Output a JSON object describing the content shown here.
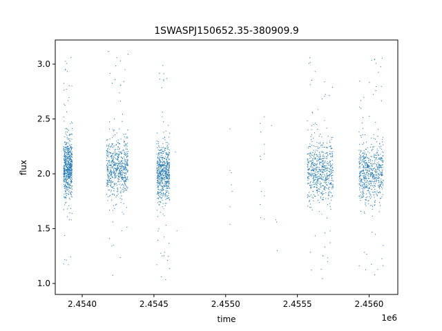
{
  "chart_data": {
    "type": "scatter",
    "title": "1SWASPJ150652.35-380909.9",
    "xlabel": "time",
    "ylabel": "flux",
    "x_offset_label": "1e6",
    "xlim": [
      2453812,
      2456200
    ],
    "ylim": [
      0.9,
      3.22
    ],
    "grid": false,
    "legend": "none",
    "x_ticks": [
      {
        "value": 2454000,
        "label": "2.4540"
      },
      {
        "value": 2454500,
        "label": "2.4545"
      },
      {
        "value": 2455000,
        "label": "2.4550"
      },
      {
        "value": 2455500,
        "label": "2.4555"
      },
      {
        "value": 2456000,
        "label": "2.4560"
      }
    ],
    "y_ticks": [
      {
        "value": 1.0,
        "label": "1.0"
      },
      {
        "value": 1.5,
        "label": "1.5"
      },
      {
        "value": 2.0,
        "label": "2.0"
      },
      {
        "value": 2.5,
        "label": "2.5"
      },
      {
        "value": 3.0,
        "label": "3.0"
      }
    ],
    "series": [
      {
        "color": "#1f77b4",
        "marker": "point",
        "observing_seasons": [
          {
            "x_range": [
              2453870,
              2453930
            ],
            "median_flux": 2.05,
            "flux_range": [
              1.0,
              3.09
            ]
          },
          {
            "x_range": [
              2454170,
              2454320
            ],
            "median_flux": 2.05,
            "flux_range": [
              1.03,
              3.12
            ]
          },
          {
            "x_range": [
              2454520,
              2454610
            ],
            "median_flux": 2.0,
            "flux_range": [
              1.0,
              3.05
            ]
          },
          {
            "x_range": [
              2455570,
              2455750
            ],
            "median_flux": 2.02,
            "flux_range": [
              1.02,
              3.06
            ]
          },
          {
            "x_range": [
              2455930,
              2456100
            ],
            "median_flux": 2.02,
            "flux_range": [
              1.02,
              3.06
            ]
          }
        ],
        "isolated_points": [
          [
            2454650,
            2.2
          ],
          [
            2454660,
            1.48
          ],
          [
            2455030,
            2.41
          ],
          [
            2455030,
            2.03
          ],
          [
            2455040,
            2.01
          ],
          [
            2455040,
            1.9
          ],
          [
            2455045,
            1.84
          ],
          [
            2455030,
            1.7
          ],
          [
            2455030,
            1.54
          ],
          [
            2455240,
            2.46
          ],
          [
            2455245,
            2.38
          ],
          [
            2455240,
            2.16
          ],
          [
            2455245,
            2.13
          ],
          [
            2455240,
            1.93
          ],
          [
            2455250,
            1.84
          ],
          [
            2455240,
            1.72
          ],
          [
            2455245,
            1.6
          ],
          [
            2455270,
            2.52
          ],
          [
            2455270,
            2.27
          ],
          [
            2455270,
            2.18
          ],
          [
            2455270,
            1.8
          ],
          [
            2455270,
            1.59
          ],
          [
            2455320,
            2.44
          ],
          [
            2455350,
            1.58
          ],
          [
            2455355,
            1.56
          ],
          [
            2455360,
            1.3
          ]
        ]
      }
    ]
  }
}
